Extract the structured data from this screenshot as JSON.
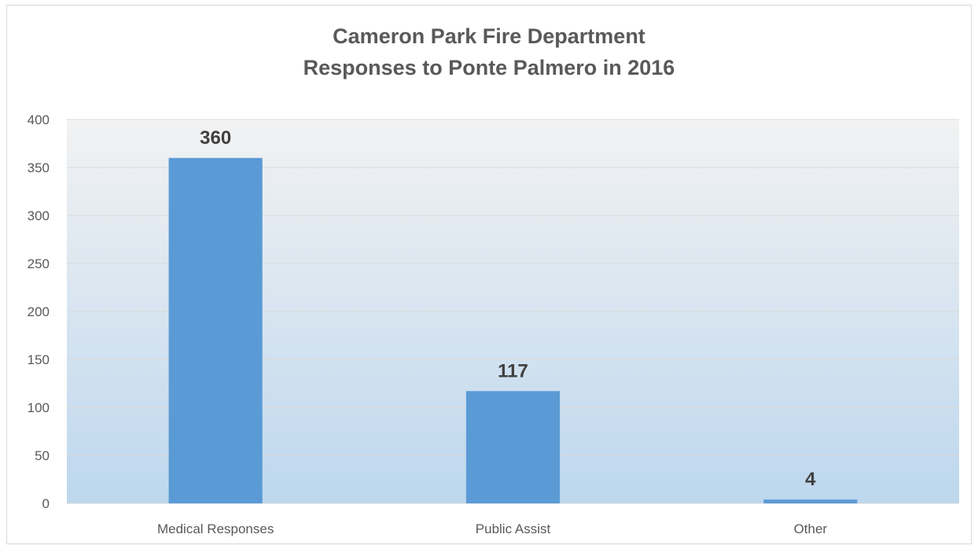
{
  "chart_data": {
    "type": "bar",
    "title_lines": [
      "Cameron Park Fire Department",
      "Responses to Ponte Palmero in 2016"
    ],
    "categories": [
      "Medical Responses",
      "Public Assist",
      "Other"
    ],
    "values": [
      360,
      117,
      4
    ],
    "data_labels": [
      "360",
      "117",
      "4"
    ],
    "ylim": [
      0,
      400
    ],
    "yticks": [
      0,
      50,
      100,
      150,
      200,
      250,
      300,
      350,
      400
    ],
    "ytick_labels": [
      "0",
      "50",
      "100",
      "150",
      "200",
      "250",
      "300",
      "350",
      "400"
    ],
    "grid": true,
    "legend": "none",
    "colors": {
      "bar": "#5b9bd5",
      "plot_bg_top": "#f2f2f2",
      "plot_bg_bottom": "#bdd7ee",
      "grid": "#d9d9d9"
    }
  }
}
